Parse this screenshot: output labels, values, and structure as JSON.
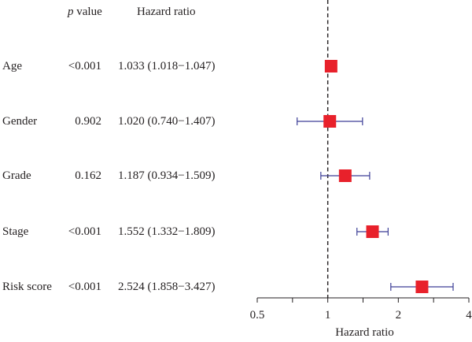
{
  "header": {
    "p_label": "p",
    "p_suffix": "value",
    "hr_label": "Hazard ratio"
  },
  "chart_data": {
    "type": "forest",
    "xlabel": "Hazard ratio",
    "x_scale": "log2",
    "xlim": [
      0.5,
      4
    ],
    "xticks": [
      "0.5",
      "1",
      "2",
      "4"
    ],
    "reference_line": 1,
    "colors": {
      "box": "#e8212b",
      "whisker": "#3d3f97",
      "axis": "#231f20"
    },
    "rows": [
      {
        "variable": "Age",
        "p_value": "<0.001",
        "hr_text": "1.033 (1.018−1.047)",
        "hr": 1.033,
        "lower": 1.018,
        "upper": 1.047
      },
      {
        "variable": "Gender",
        "p_value": "0.902",
        "hr_text": "1.020 (0.740−1.407)",
        "hr": 1.02,
        "lower": 0.74,
        "upper": 1.407
      },
      {
        "variable": "Grade",
        "p_value": "0.162",
        "hr_text": "1.187 (0.934−1.509)",
        "hr": 1.187,
        "lower": 0.934,
        "upper": 1.509
      },
      {
        "variable": "Stage",
        "p_value": "<0.001",
        "hr_text": "1.552 (1.332−1.809)",
        "hr": 1.552,
        "lower": 1.332,
        "upper": 1.809
      },
      {
        "variable": "Risk score",
        "p_value": "<0.001",
        "hr_text": "2.524 (1.858−3.427)",
        "hr": 2.524,
        "lower": 1.858,
        "upper": 3.427
      }
    ]
  }
}
